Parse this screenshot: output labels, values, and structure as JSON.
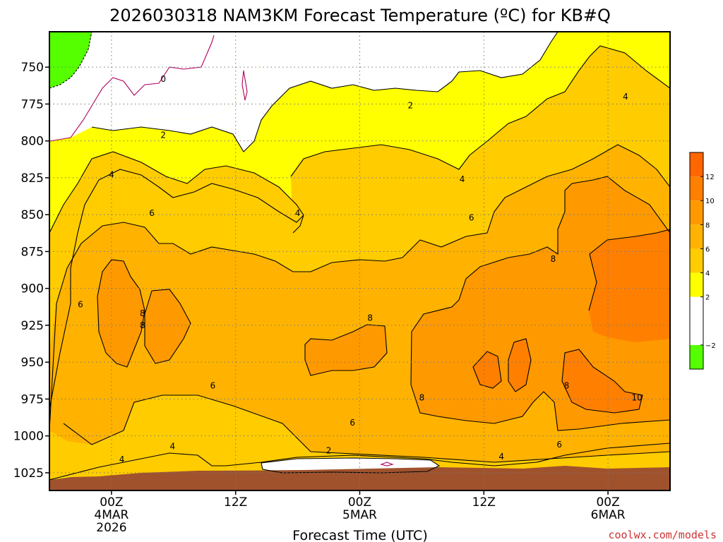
{
  "chart_data": {
    "type": "heatmap",
    "title": "2026030318 NAM3KM Forecast Temperature (ºC) for KB#Q",
    "xlabel": "Forecast Time (UTC)",
    "ylabel": "",
    "credit": "coolwx.com/models",
    "y_axis": {
      "quantity": "pressure",
      "ticks": [
        "750",
        "775",
        "800",
        "825",
        "850",
        "875",
        "900",
        "925",
        "950",
        "975",
        "1000",
        "1025"
      ],
      "range": [
        726,
        1037
      ],
      "inverted": false
    },
    "x_axis": {
      "quantity": "forecast hour",
      "range": [
        -6,
        54
      ],
      "ticks": [
        {
          "hour": 0,
          "lines": [
            "00Z",
            "4MAR",
            "2026"
          ]
        },
        {
          "hour": 12,
          "lines": [
            "12Z"
          ]
        },
        {
          "hour": 24,
          "lines": [
            "00Z",
            "5MAR"
          ]
        },
        {
          "hour": 36,
          "lines": [
            "12Z"
          ]
        },
        {
          "hour": 48,
          "lines": [
            "00Z",
            "6MAR"
          ]
        }
      ]
    },
    "grid": true,
    "legend": "right",
    "colorbar": {
      "labels": [
        "12",
        "10",
        "8",
        "6",
        "4",
        "2",
        "−2"
      ],
      "bands": [
        {
          "from": 12,
          "to": 14,
          "color": "#ff6600"
        },
        {
          "from": 10,
          "to": 12,
          "color": "#ff8000"
        },
        {
          "from": 8,
          "to": 10,
          "color": "#ff9900"
        },
        {
          "from": 6,
          "to": 8,
          "color": "#ffb300"
        },
        {
          "from": 4,
          "to": 6,
          "color": "#ffcc00"
        },
        {
          "from": 2,
          "to": 4,
          "color": "#ffff00"
        },
        {
          "from": -2,
          "to": 2,
          "color": "#ffffff"
        },
        {
          "from": -4,
          "to": -2,
          "color": "#55ff00"
        }
      ]
    },
    "ground_color": "#a0522d",
    "contour_labels": [
      {
        "value": "0",
        "hour": 5,
        "p": 758
      },
      {
        "value": "2",
        "hour": 5,
        "p": 796
      },
      {
        "value": "4",
        "hour": 0,
        "p": 823
      },
      {
        "value": "6",
        "hour": 3.9,
        "p": 849
      },
      {
        "value": "4",
        "hour": 18,
        "p": 849
      },
      {
        "value": "2",
        "hour": 28.9,
        "p": 776
      },
      {
        "value": "4",
        "hour": 33.9,
        "p": 826
      },
      {
        "value": "6",
        "hour": 34.8,
        "p": 852
      },
      {
        "value": "4",
        "hour": 49.7,
        "p": 770
      },
      {
        "value": "8",
        "hour": 42.7,
        "p": 880
      },
      {
        "value": "6",
        "hour": -3,
        "p": 911
      },
      {
        "value": "8",
        "hour": 3,
        "p": 917
      },
      {
        "value": "8",
        "hour": 3,
        "p": 925
      },
      {
        "value": "8",
        "hour": 25,
        "p": 920
      },
      {
        "value": "6",
        "hour": 9.8,
        "p": 966
      },
      {
        "value": "8",
        "hour": 30,
        "p": 974
      },
      {
        "value": "8",
        "hour": 44,
        "p": 966
      },
      {
        "value": "10",
        "hour": 50.8,
        "p": 974
      },
      {
        "value": "6",
        "hour": 23.3,
        "p": 991
      },
      {
        "value": "6",
        "hour": 43.3,
        "p": 1006
      },
      {
        "value": "4",
        "hour": 5.9,
        "p": 1007
      },
      {
        "value": "4",
        "hour": 1,
        "p": 1016
      },
      {
        "value": "2",
        "hour": 21,
        "p": 1010
      },
      {
        "value": "4",
        "hour": 37.7,
        "p": 1014
      }
    ]
  }
}
